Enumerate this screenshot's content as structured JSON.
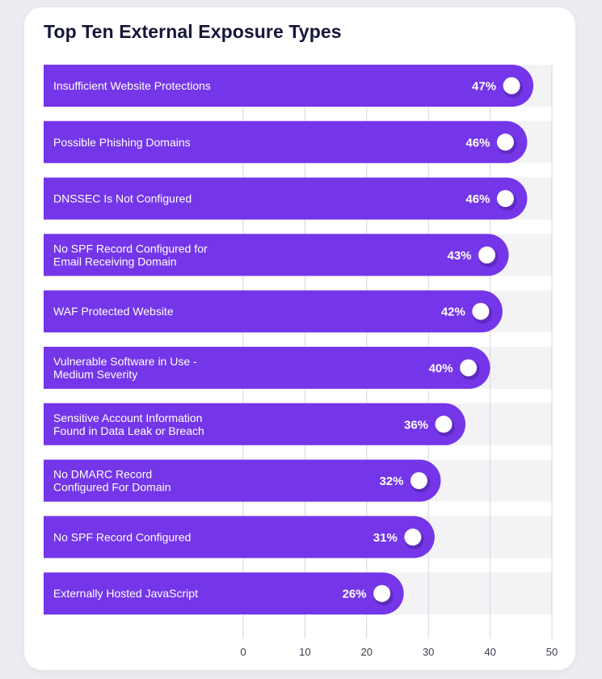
{
  "chart_data": {
    "type": "bar",
    "orientation": "horizontal",
    "title": "Top Ten External Exposure Types",
    "categories": [
      [
        "Insufficient Website Protections"
      ],
      [
        "Possible Phishing Domains"
      ],
      [
        "DNSSEC Is Not Configured"
      ],
      [
        "No SPF Record Configured for",
        "Email Receiving Domain"
      ],
      [
        "WAF Protected Website"
      ],
      [
        "Vulnerable Software in Use -",
        "Medium Severity"
      ],
      [
        "Sensitive Account Information",
        "Found in Data Leak or Breach"
      ],
      [
        "No DMARC Record",
        "Configured For Domain"
      ],
      [
        "No SPF Record Configured"
      ],
      [
        "Externally Hosted JavaScript"
      ]
    ],
    "values": [
      47,
      46,
      46,
      43,
      42,
      40,
      36,
      32,
      31,
      26
    ],
    "value_labels": [
      "47%",
      "46%",
      "46%",
      "43%",
      "42%",
      "40%",
      "36%",
      "32%",
      "31%",
      "26%"
    ],
    "xticks": [
      "0",
      "10",
      "20",
      "30",
      "40",
      "50"
    ],
    "xlim": [
      0,
      50
    ],
    "grid": true,
    "colors": {
      "bar": "#7436e8",
      "track": "#f3f3f6",
      "grid": "#d6d6de",
      "dot": "#ffffff",
      "title": "#16163a",
      "tick": "#3b3b4f"
    }
  }
}
